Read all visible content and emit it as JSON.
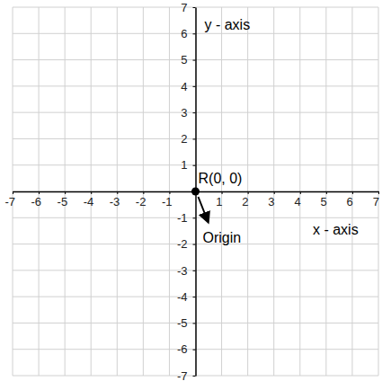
{
  "chart_data": {
    "type": "scatter",
    "x_label": "x - axis",
    "y_label": "y - axis",
    "annotation": "Origin",
    "xlim": [
      -7,
      7
    ],
    "ylim": [
      -7,
      7
    ],
    "xticks": [
      -7,
      -6,
      -5,
      -4,
      -3,
      -2,
      -1,
      1,
      2,
      3,
      4,
      5,
      6,
      7
    ],
    "yticks": [
      -7,
      -6,
      -5,
      -4,
      -3,
      -2,
      -1,
      1,
      2,
      3,
      4,
      5,
      6,
      7
    ],
    "grid": true,
    "series": [
      {
        "name": "R(0, 0)",
        "x": [
          0
        ],
        "values": [
          0
        ],
        "color": "#000000",
        "marker": "circle"
      }
    ]
  }
}
